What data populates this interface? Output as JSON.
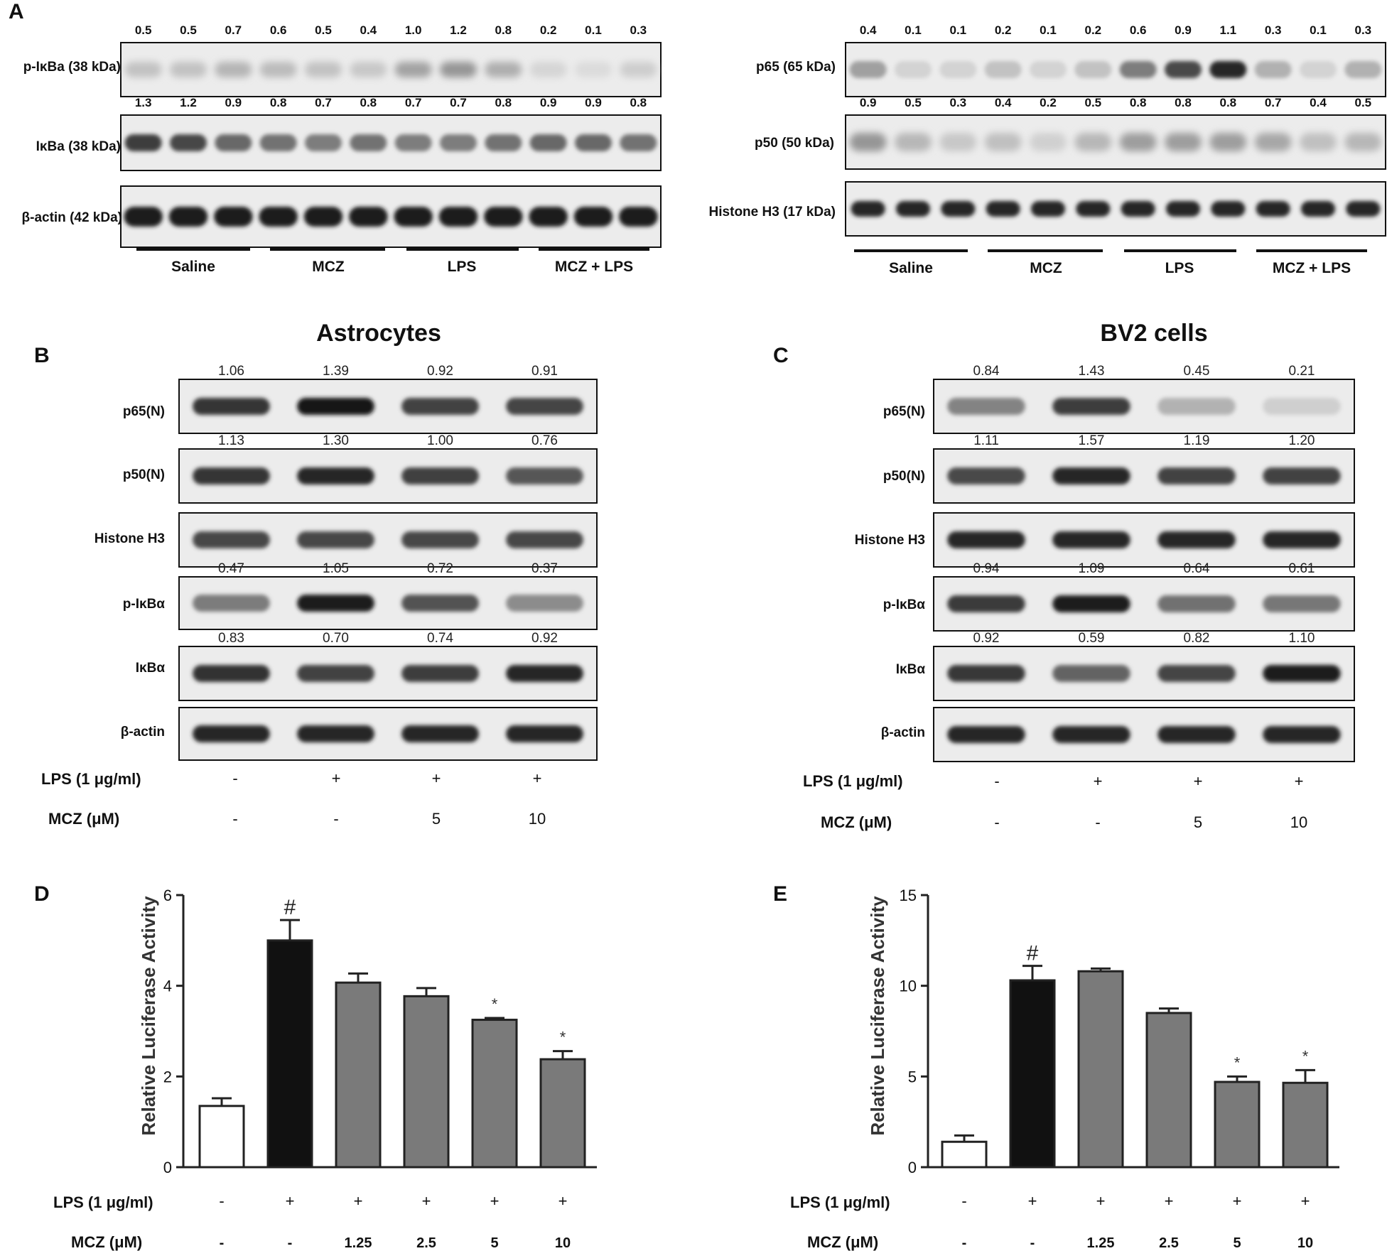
{
  "panel_labels": {
    "A": "A",
    "B": "B",
    "C": "C",
    "D": "D",
    "E": "E"
  },
  "panel_A_left": {
    "rows": [
      {
        "label": "p-IκBa (38 kDa)",
        "values": [
          "0.5",
          "0.5",
          "0.7",
          "0.6",
          "0.5",
          "0.4",
          "1.0",
          "1.2",
          "0.8",
          "0.2",
          "0.1",
          "0.3"
        ],
        "band_intensity": [
          0.5,
          0.5,
          0.7,
          0.6,
          0.5,
          0.4,
          1.0,
          1.2,
          0.8,
          0.2,
          0.1,
          0.3
        ],
        "max_intensity": 1.2
      },
      {
        "label": "IκBa (38 kDa)",
        "values": [
          "1.3",
          "1.2",
          "0.9",
          "0.8",
          "0.7",
          "0.8",
          "0.7",
          "0.7",
          "0.8",
          "0.9",
          "0.9",
          "0.8"
        ],
        "band_intensity": [
          1.3,
          1.2,
          0.9,
          0.8,
          0.7,
          0.8,
          0.7,
          0.7,
          0.8,
          0.9,
          0.9,
          0.8
        ],
        "max_intensity": 1.3
      },
      {
        "label": "β-actin (42 kDa)",
        "values": [],
        "band_intensity": [
          1,
          1,
          1,
          1,
          1,
          1,
          1,
          1,
          1,
          1,
          1,
          1
        ],
        "max_intensity": 1
      }
    ],
    "groups": [
      "Saline",
      "MCZ",
      "LPS",
      "MCZ + LPS"
    ]
  },
  "panel_A_right": {
    "rows": [
      {
        "label": "p65 (65 kDa)",
        "values": [
          "0.4",
          "0.1",
          "0.1",
          "0.2",
          "0.1",
          "0.2",
          "0.6",
          "0.9",
          "1.1",
          "0.3",
          "0.1",
          "0.3"
        ],
        "band_intensity": [
          0.4,
          0.1,
          0.1,
          0.2,
          0.1,
          0.2,
          0.6,
          0.9,
          1.1,
          0.3,
          0.1,
          0.3
        ],
        "max_intensity": 1.1
      },
      {
        "label": "p50 (50 kDa)",
        "values": [
          "0.9",
          "0.5",
          "0.3",
          "0.4",
          "0.2",
          "0.5",
          "0.8",
          "0.8",
          "0.8",
          "0.7",
          "0.4",
          "0.5"
        ],
        "band_intensity": [
          0.9,
          0.5,
          0.3,
          0.4,
          0.2,
          0.5,
          0.8,
          0.8,
          0.8,
          0.7,
          0.4,
          0.5
        ],
        "max_intensity": 0.9
      },
      {
        "label": "Histone H3 (17 kDa)",
        "values": [],
        "band_intensity": [
          1,
          1,
          1,
          1,
          1,
          1,
          1,
          1,
          1,
          1,
          1,
          1
        ],
        "max_intensity": 1
      }
    ],
    "groups": [
      "Saline",
      "MCZ",
      "LPS",
      "MCZ + LPS"
    ]
  },
  "panel_B": {
    "title": "Astrocytes",
    "rows": [
      {
        "label": "p65(N)",
        "values": [
          "1.06",
          "1.39",
          "0.92",
          "0.91"
        ],
        "band_intensity": [
          1.06,
          1.39,
          0.92,
          0.91
        ],
        "max_intensity": 1.39
      },
      {
        "label": "p50(N)",
        "values": [
          "1.13",
          "1.30",
          "1.00",
          "0.76"
        ],
        "band_intensity": [
          1.13,
          1.3,
          1.0,
          0.76
        ],
        "max_intensity": 1.3
      },
      {
        "label": "Histone H3",
        "values": [],
        "band_intensity": [
          1,
          1,
          1,
          1
        ],
        "max_intensity": 1
      },
      {
        "label": "p-IκBα",
        "values": [
          "0.47",
          "1.05",
          "0.72",
          "0.37"
        ],
        "band_intensity": [
          0.47,
          1.05,
          0.72,
          0.37
        ],
        "max_intensity": 1.05
      },
      {
        "label": "IκBα",
        "values": [
          "0.83",
          "0.70",
          "0.74",
          "0.92"
        ],
        "band_intensity": [
          0.83,
          0.7,
          0.74,
          0.92
        ],
        "max_intensity": 0.92
      },
      {
        "label": "β-actin",
        "values": [],
        "band_intensity": [
          1,
          1,
          1,
          1
        ],
        "max_intensity": 1
      }
    ],
    "conditions": [
      {
        "label": "LPS (1 μg/ml)",
        "values": [
          "-",
          "+",
          "+",
          "+"
        ]
      },
      {
        "label": "MCZ (μM)",
        "values": [
          "-",
          "-",
          "5",
          "10"
        ]
      }
    ]
  },
  "panel_C": {
    "title": "BV2 cells",
    "rows": [
      {
        "label": "p65(N)",
        "values": [
          "0.84",
          "1.43",
          "0.45",
          "0.21"
        ],
        "band_intensity": [
          0.84,
          1.43,
          0.45,
          0.21
        ],
        "max_intensity": 1.43
      },
      {
        "label": "p50(N)",
        "values": [
          "1.11",
          "1.57",
          "1.19",
          "1.20"
        ],
        "band_intensity": [
          1.11,
          1.57,
          1.19,
          1.2
        ],
        "max_intensity": 1.57
      },
      {
        "label": "Histone H3",
        "values": [],
        "band_intensity": [
          1,
          1,
          1,
          1
        ],
        "max_intensity": 1
      },
      {
        "label": "p-IκBα",
        "values": [
          "0.94",
          "1.09",
          "0.64",
          "0.61"
        ],
        "band_intensity": [
          0.94,
          1.09,
          0.64,
          0.61
        ],
        "max_intensity": 1.09
      },
      {
        "label": "IκBα",
        "values": [
          "0.92",
          "0.59",
          "0.82",
          "1.10"
        ],
        "band_intensity": [
          0.92,
          0.59,
          0.82,
          1.1
        ],
        "max_intensity": 1.1
      },
      {
        "label": "β-actin",
        "values": [],
        "band_intensity": [
          1,
          1,
          1,
          1
        ],
        "max_intensity": 1
      }
    ],
    "conditions": [
      {
        "label": "LPS (1 μg/ml)",
        "values": [
          "-",
          "+",
          "+",
          "+"
        ]
      },
      {
        "label": "MCZ (μM)",
        "values": [
          "-",
          "-",
          "5",
          "10"
        ]
      }
    ]
  },
  "chart_data": [
    {
      "type": "bar",
      "panel": "D",
      "ylabel": "Relative Luciferase Activity",
      "ylim": [
        0,
        6
      ],
      "yticks": [
        0,
        2,
        4,
        6
      ],
      "values": [
        1.35,
        5.0,
        4.07,
        3.77,
        3.25,
        2.38
      ],
      "errors": [
        0.17,
        0.45,
        0.2,
        0.18,
        0.04,
        0.18
      ],
      "bar_colors": [
        "#ffffff",
        "#111111",
        "#7a7a7a",
        "#7a7a7a",
        "#7a7a7a",
        "#7a7a7a"
      ],
      "annotations": [
        "",
        "#",
        "",
        "",
        "*",
        "*"
      ],
      "conditions": [
        {
          "label": "LPS (1 μg/ml)",
          "values": [
            "-",
            "+",
            "+",
            "+",
            "+",
            "+"
          ]
        },
        {
          "label": "MCZ (μM)",
          "values": [
            "-",
            "-",
            "1.25",
            "2.5",
            "5",
            "10"
          ]
        }
      ]
    },
    {
      "type": "bar",
      "panel": "E",
      "ylabel": "Relative Luciferase Activity",
      "ylim": [
        0,
        15
      ],
      "yticks": [
        0,
        5,
        10,
        15
      ],
      "values": [
        1.4,
        10.3,
        10.8,
        8.5,
        4.7,
        4.65
      ],
      "errors": [
        0.35,
        0.8,
        0.15,
        0.25,
        0.3,
        0.7
      ],
      "bar_colors": [
        "#ffffff",
        "#111111",
        "#7a7a7a",
        "#7a7a7a",
        "#7a7a7a",
        "#7a7a7a"
      ],
      "annotations": [
        "",
        "#",
        "",
        "",
        "*",
        "*"
      ],
      "conditions": [
        {
          "label": "LPS (1 μg/ml)",
          "values": [
            "-",
            "+",
            "+",
            "+",
            "+",
            "+"
          ]
        },
        {
          "label": "MCZ (μM)",
          "values": [
            "-",
            "-",
            "1.25",
            "2.5",
            "5",
            "10"
          ]
        }
      ]
    }
  ]
}
